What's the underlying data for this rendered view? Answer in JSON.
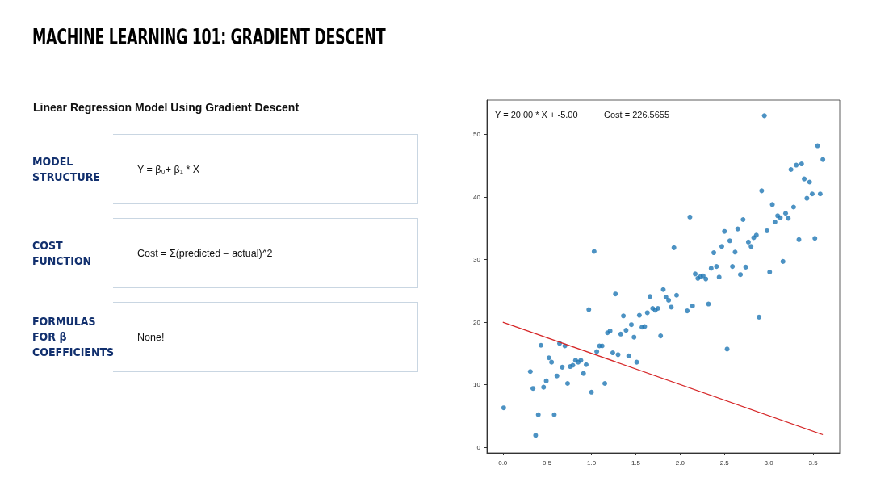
{
  "chart_data": [
    {
      "type": "other",
      "title": "MACHINE LEARNING 101: GRADIENT DESCENT",
      "subtitle": "Linear Regression Model Using Gradient Descent",
      "annotations": [
        "MODEL STRUCTURE",
        "Y = β₀+ β₁ * X",
        "COST FUNCTION",
        "Cost = Σ(predicted – actual)^2",
        "FORMULAS FOR β COEFFICIENTS",
        "None!"
      ]
    },
    {
      "type": "scatter",
      "annotations": [
        "Y = 20.00 * X + -5.00",
        "Cost = 226.5655"
      ],
      "xlim": [
        -0.18,
        3.8
      ],
      "ylim": [
        -0.9,
        55.5
      ],
      "xticks": [
        {
          "value": 0,
          "label": "0.0"
        },
        {
          "value": 0.5,
          "label": "0.5"
        },
        {
          "value": 1,
          "label": "1.0"
        },
        {
          "value": 1.5,
          "label": "1.5"
        },
        {
          "value": 2,
          "label": "2.0"
        },
        {
          "value": 2.5,
          "label": "2.5"
        },
        {
          "value": 3,
          "label": "3.0"
        },
        {
          "value": 3.5,
          "label": "3.5"
        }
      ],
      "yticks": [
        0,
        10,
        20,
        30,
        40,
        50
      ],
      "grid": false,
      "series": [
        {
          "type": "scatter",
          "marker": "circle",
          "color": "#1f77b4",
          "x": [
            0.01,
            0.31,
            0.34,
            0.37,
            0.4,
            0.43,
            0.46,
            0.49,
            0.52,
            0.55,
            0.58,
            0.61,
            0.64,
            0.67,
            0.7,
            0.73,
            0.76,
            0.79,
            0.82,
            0.85,
            0.88,
            0.91,
            0.94,
            0.97,
            1.0,
            1.03,
            1.06,
            1.09,
            1.12,
            1.15,
            1.18,
            1.21,
            1.24,
            1.27,
            1.3,
            1.33,
            1.36,
            1.39,
            1.42,
            1.45,
            1.48,
            1.51,
            1.54,
            1.57,
            1.6,
            1.63,
            1.66,
            1.69,
            1.72,
            1.75,
            1.78,
            1.81,
            1.84,
            1.87,
            1.9,
            1.93,
            1.96,
            2.08,
            2.11,
            2.14,
            2.17,
            2.2,
            2.23,
            2.26,
            2.29,
            2.32,
            2.35,
            2.38,
            2.41,
            2.44,
            2.47,
            2.5,
            2.53,
            2.56,
            2.59,
            2.62,
            2.65,
            2.68,
            2.71,
            2.74,
            2.77,
            2.8,
            2.83,
            2.86,
            2.89,
            2.92,
            2.95,
            2.98,
            3.01,
            3.04,
            3.07,
            3.1,
            3.13,
            3.16,
            3.19,
            3.22,
            3.25,
            3.28,
            3.31,
            3.34,
            3.37,
            3.4,
            3.43,
            3.46,
            3.49,
            3.52,
            3.55,
            3.58,
            3.61
          ],
          "values": [
            6.3,
            12.1,
            9.4,
            1.9,
            5.2,
            16.3,
            9.6,
            10.6,
            14.3,
            13.6,
            5.2,
            11.4,
            16.6,
            12.8,
            16.2,
            10.2,
            12.9,
            13.1,
            13.9,
            13.6,
            13.9,
            11.8,
            13.2,
            22.0,
            8.8,
            31.3,
            15.3,
            16.2,
            16.2,
            10.2,
            18.3,
            18.6,
            15.1,
            24.5,
            14.8,
            18.1,
            21.0,
            18.7,
            14.6,
            19.6,
            17.6,
            13.6,
            21.1,
            19.2,
            19.3,
            21.5,
            24.1,
            22.2,
            21.9,
            22.2,
            17.8,
            25.2,
            24.0,
            23.5,
            22.4,
            31.9,
            24.3,
            21.8,
            36.8,
            22.6,
            27.7,
            27.0,
            27.3,
            27.4,
            26.9,
            22.9,
            28.6,
            31.1,
            28.9,
            27.2,
            32.1,
            34.5,
            15.7,
            33.0,
            28.9,
            31.2,
            34.9,
            27.6,
            36.4,
            28.8,
            32.8,
            32.1,
            33.5,
            33.9,
            20.8,
            41.0,
            53.0,
            34.6,
            28.0,
            38.8,
            36.0,
            37.0,
            36.7,
            29.7,
            37.4,
            36.6,
            44.4,
            38.4,
            45.1,
            33.2,
            45.3,
            42.9,
            39.8,
            42.4,
            40.5,
            33.4,
            48.2,
            40.5,
            46.0
          ]
        },
        {
          "type": "line",
          "marker": "none",
          "color": "#d62728",
          "x": [
            0,
            3.61
          ],
          "values": [
            20,
            2
          ]
        }
      ]
    }
  ]
}
